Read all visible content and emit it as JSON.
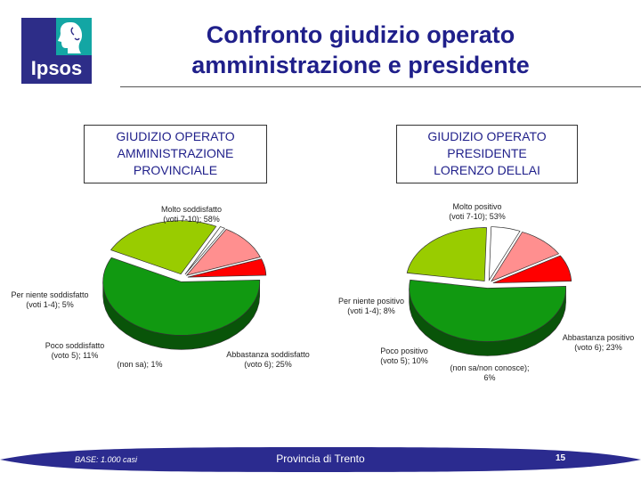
{
  "header": {
    "logo_text": "Ipsos",
    "title_line1": "Confronto giudizio operato",
    "title_line2": "amministrazione e presidente"
  },
  "chart_data": [
    {
      "type": "pie",
      "title_lines": [
        "GIUDIZIO OPERATO",
        "AMMINISTRAZIONE",
        "PROVINCIALE"
      ],
      "slices": [
        {
          "label": "Molto soddisfatto",
          "detail": "(voti 7-10); 58%",
          "value": 58,
          "color": "#119911"
        },
        {
          "label": "Abbastanza soddisfatto",
          "detail": "(voto 6); 25%",
          "value": 25,
          "color": "#99cc00"
        },
        {
          "label": "(non sa); 1%",
          "detail": "",
          "value": 1,
          "color": "#ffffff"
        },
        {
          "label": "Poco soddisfatto",
          "detail": "(voto 5); 11%",
          "value": 11,
          "color": "#ff8f8f"
        },
        {
          "label": "Per niente soddisfatto",
          "detail": "(voti 1-4); 5%",
          "value": 5,
          "color": "#ff0000"
        }
      ]
    },
    {
      "type": "pie",
      "title_lines": [
        "GIUDIZIO OPERATO",
        "PRESIDENTE",
        "LORENZO DELLAI"
      ],
      "slices": [
        {
          "label": "Molto positivo",
          "detail": "(voti 7-10); 53%",
          "value": 53,
          "color": "#119911"
        },
        {
          "label": "Abbastanza positivo",
          "detail": "(voto 6); 23%",
          "value": 23,
          "color": "#99cc00"
        },
        {
          "label": "(non sa/non conosce);",
          "detail": "6%",
          "value": 6,
          "color": "#ffffff"
        },
        {
          "label": "Poco positivo",
          "detail": "(voto 5); 10%",
          "value": 10,
          "color": "#ff8f8f"
        },
        {
          "label": "Per niente positivo",
          "detail": "(voti 1-4); 8%",
          "value": 8,
          "color": "#ff0000"
        }
      ]
    }
  ],
  "footer": {
    "base": "BASE: 1.000 casi",
    "center": "Provincia di Trento",
    "page": "15"
  }
}
